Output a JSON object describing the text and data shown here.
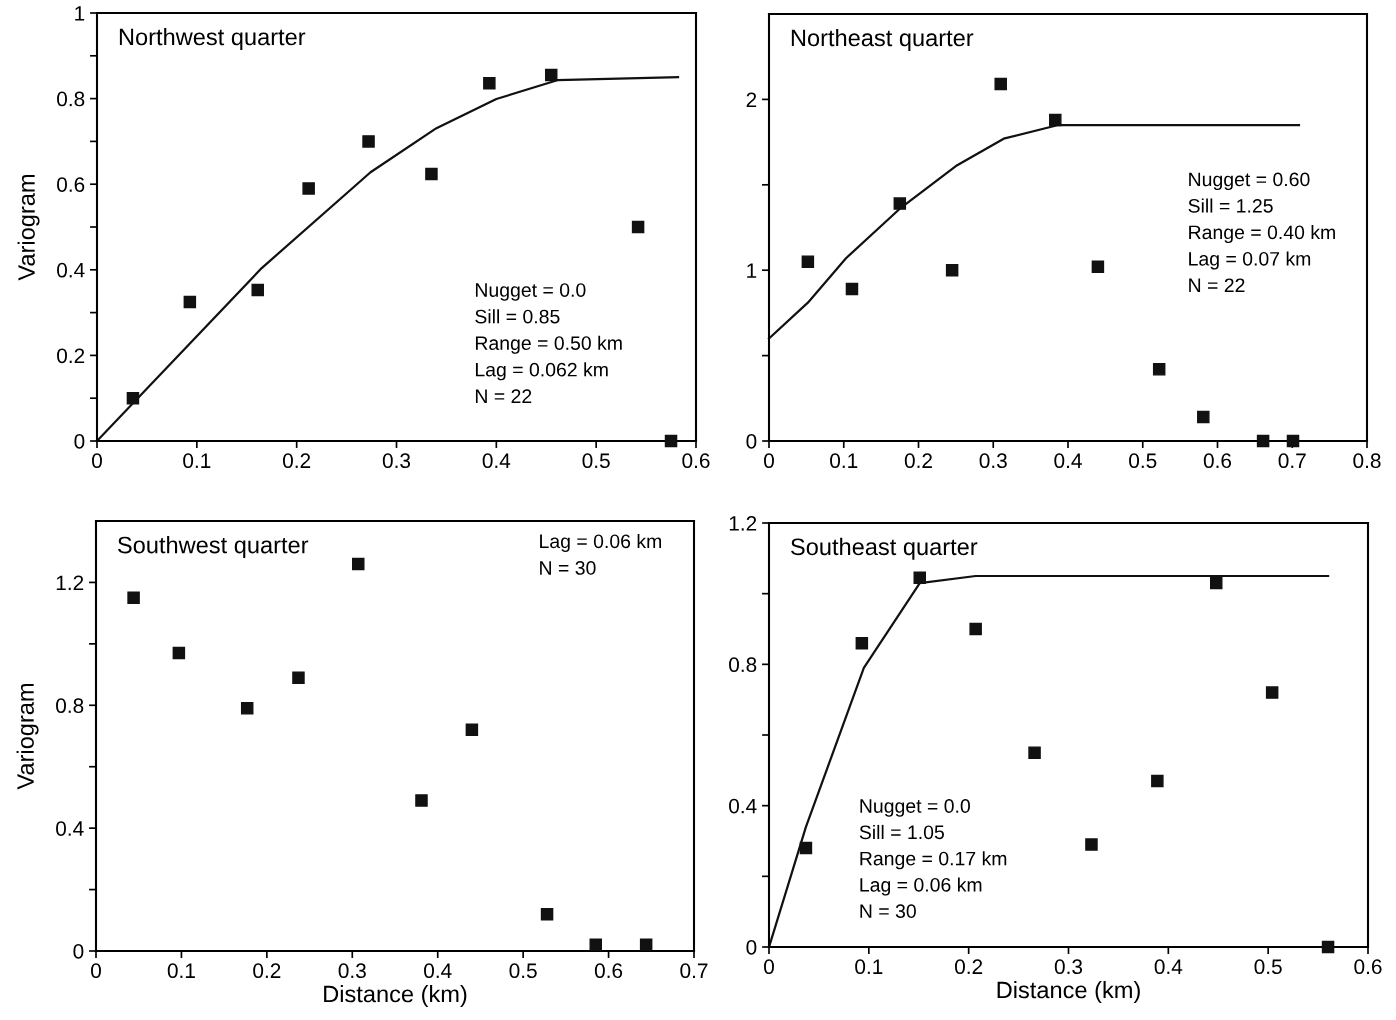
{
  "chart_data": [
    {
      "type": "scatter",
      "title": "Northwest quarter",
      "ylabel": "Variogram",
      "xlim": [
        0,
        0.6
      ],
      "ylim": [
        0,
        1
      ],
      "xticks": [
        0,
        0.1,
        0.2,
        0.3,
        0.4,
        0.5,
        0.6
      ],
      "yticks": [
        0,
        {
          "value": 0.1,
          "label": null
        },
        0.2,
        {
          "value": 0.3,
          "label": null
        },
        0.4,
        {
          "value": 0.5,
          "label": null
        },
        0.6,
        {
          "value": 0.7,
          "label": null
        },
        0.8,
        {
          "value": 0.9,
          "label": null
        },
        1
      ],
      "grid": false,
      "legend": false,
      "annotations": [
        "Nugget = 0.0",
        "Sill = 0.85",
        "Range = 0.50 km",
        "Lag = 0.062 km",
        "N = 22"
      ],
      "series": [
        {
          "marker": "square",
          "color": "#111111",
          "x": [
            0.036,
            0.093,
            0.161,
            0.212,
            0.272,
            0.335,
            0.393,
            0.455,
            0.542,
            0.575
          ],
          "values": [
            0.1,
            0.325,
            0.353,
            0.59,
            0.7,
            0.624,
            0.836,
            0.855,
            0.5,
            0
          ]
        },
        {
          "type": "line",
          "marker": "none",
          "color": "#111111",
          "line_style": "solid",
          "x": [
            0,
            0.165,
            0.274,
            0.34,
            0.4,
            0.461,
            0.582
          ],
          "values": [
            0,
            0.404,
            0.628,
            0.731,
            0.799,
            0.843,
            0.85
          ]
        }
      ]
    },
    {
      "type": "scatter",
      "title": "Northeast quarter",
      "xlim": [
        0,
        0.8
      ],
      "ylim": [
        0,
        2.5
      ],
      "xticks": [
        0,
        0.1,
        0.2,
        0.3,
        0.4,
        0.5,
        0.6,
        0.7,
        0.8
      ],
      "yticks": [
        0,
        {
          "value": 0.5,
          "label": null
        },
        1,
        {
          "value": 1.5,
          "label": null
        },
        2
      ],
      "grid": false,
      "legend": false,
      "annotations": [
        "Nugget = 0.60",
        "Sill = 1.25",
        "Range = 0.40 km",
        "Lag = 0.07 km",
        "N = 22"
      ],
      "series": [
        {
          "marker": "square",
          "color": "#111111",
          "x": [
            0.052,
            0.111,
            0.175,
            0.245,
            0.31,
            0.383,
            0.44,
            0.522,
            0.581,
            0.661,
            0.701
          ],
          "values": [
            1.05,
            0.89,
            1.39,
            1.0,
            2.09,
            1.88,
            1.02,
            0.42,
            0.14,
            0,
            0
          ]
        },
        {
          "type": "line",
          "marker": "none",
          "color": "#111111",
          "line_style": "solid",
          "x": [
            0,
            0.052,
            0.103,
            0.175,
            0.25,
            0.314,
            0.387,
            0.709
          ],
          "values": [
            0.6,
            0.81,
            1.07,
            1.36,
            1.61,
            1.77,
            1.85,
            1.85
          ]
        }
      ]
    },
    {
      "type": "scatter",
      "title": "Southwest quarter",
      "xlabel": "Distance (km)",
      "ylabel": "Variogram",
      "xlim": [
        0,
        0.7
      ],
      "ylim": [
        0,
        1.4
      ],
      "xticks": [
        0,
        0.1,
        0.2,
        0.3,
        0.4,
        0.5,
        0.6,
        0.7
      ],
      "yticks": [
        0,
        {
          "value": 0.2,
          "label": null
        },
        0.4,
        {
          "value": 0.6,
          "label": null
        },
        0.8,
        {
          "value": 1.0,
          "label": null
        },
        1.2
      ],
      "grid": false,
      "legend": false,
      "annotations": [
        "Lag = 0.06 km",
        "N = 30"
      ],
      "series": [
        {
          "marker": "square",
          "color": "#111111",
          "x": [
            0.044,
            0.097,
            0.177,
            0.237,
            0.307,
            0.381,
            0.44,
            0.528,
            0.585,
            0.644
          ],
          "values": [
            1.15,
            0.97,
            0.79,
            0.89,
            1.26,
            0.49,
            0.72,
            0.12,
            0.02,
            0.02
          ]
        }
      ]
    },
    {
      "type": "scatter",
      "title": "Southeast quarter",
      "xlabel": "Distance (km)",
      "xlim": [
        0,
        0.6
      ],
      "ylim": [
        0,
        1.2
      ],
      "xticks": [
        0,
        0.1,
        0.2,
        0.3,
        0.4,
        0.5,
        0.6
      ],
      "yticks": [
        0,
        {
          "value": 0.2,
          "label": null
        },
        0.4,
        {
          "value": 0.6,
          "label": null
        },
        0.8,
        {
          "value": 1.0,
          "label": null
        },
        1.2
      ],
      "grid": false,
      "legend": false,
      "annotations": [
        "Nugget = 0.0",
        "Sill = 1.05",
        "Range = 0.17 km",
        "Lag = 0.06 km",
        "N = 30"
      ],
      "series": [
        {
          "marker": "square",
          "color": "#111111",
          "x": [
            0.037,
            0.093,
            0.151,
            0.207,
            0.266,
            0.323,
            0.389,
            0.448,
            0.504,
            0.56
          ],
          "values": [
            0.28,
            0.86,
            1.045,
            0.9,
            0.55,
            0.29,
            0.47,
            1.03,
            0.72,
            0
          ]
        },
        {
          "type": "line",
          "marker": "none",
          "color": "#111111",
          "line_style": "solid",
          "x": [
            0,
            0.037,
            0.095,
            0.151,
            0.207,
            0.56
          ],
          "values": [
            0,
            0.34,
            0.79,
            1.03,
            1.05,
            1.05
          ]
        }
      ]
    }
  ]
}
